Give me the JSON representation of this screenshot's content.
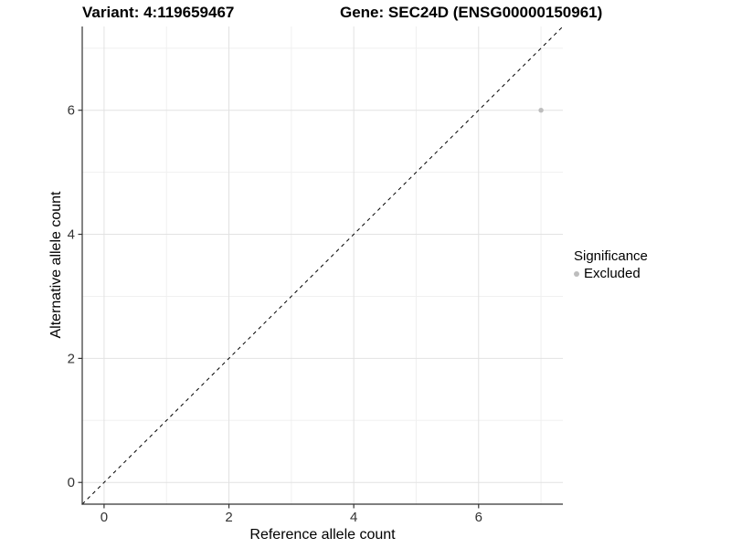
{
  "title": {
    "left": "Variant: 4:119659467",
    "right": "Gene: SEC24D (ENSG00000150961)"
  },
  "chart_data": {
    "type": "scatter",
    "title": "Variant: 4:119659467   Gene: SEC24D (ENSG00000150961)",
    "xlabel": "Reference allele count",
    "ylabel": "Alternative allele count",
    "xlim": [
      -0.35,
      7.35
    ],
    "ylim": [
      -0.35,
      7.35
    ],
    "xticks": [
      0,
      2,
      4,
      6
    ],
    "yticks": [
      0,
      2,
      4,
      6
    ],
    "xminor": [
      1,
      3,
      5,
      7
    ],
    "yminor": [
      1,
      3,
      5,
      7
    ],
    "grid": true,
    "points": [
      {
        "x": 7,
        "y": 6,
        "significance": "Excluded"
      }
    ],
    "identity_line": {
      "style": "dashed",
      "x1": -0.35,
      "y1": -0.35,
      "x2": 7.35,
      "y2": 7.35
    },
    "legend": {
      "title": "Significance",
      "position": "right",
      "items": [
        {
          "label": "Excluded",
          "color": "#bdbdbd"
        }
      ]
    },
    "colors": {
      "point": "#bdbdbd",
      "grid_major": "#e2e2e2",
      "grid_minor": "#f0f0f0",
      "axis_line": "#333333",
      "tick": "#333333",
      "tick_label": "#333333",
      "identity_line": "#000000",
      "background": "#ffffff"
    }
  }
}
